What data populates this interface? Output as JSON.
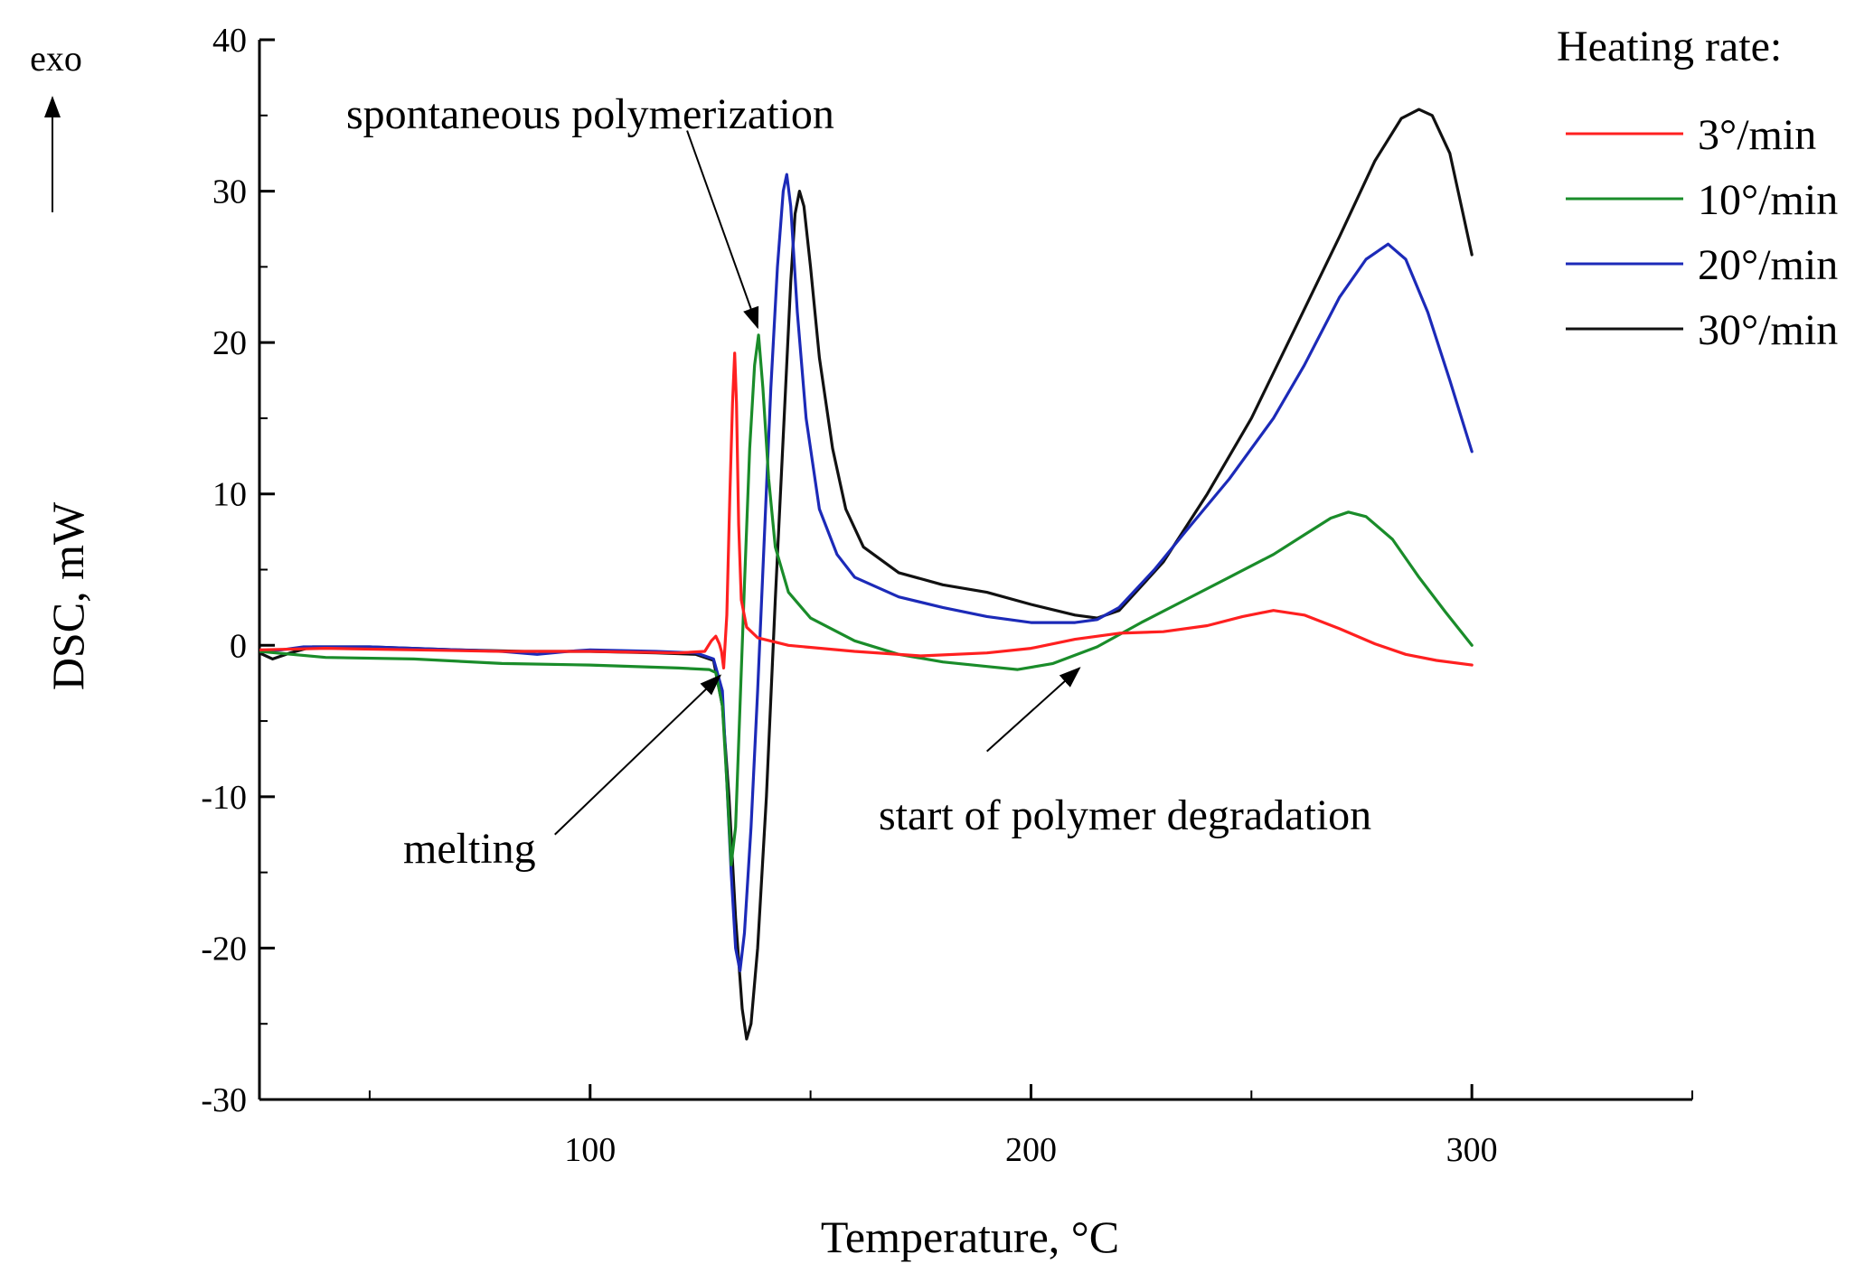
{
  "chart_data": {
    "type": "line",
    "title": "",
    "xlabel": "Temperature, °C",
    "ylabel": "DSC, mW",
    "xlim": [
      25,
      350
    ],
    "ylim": [
      -30,
      40
    ],
    "x_major_ticks": [
      100,
      200,
      300
    ],
    "x_minor_ticks": [
      50,
      150,
      250,
      350
    ],
    "y_major_ticks": [
      -30,
      -20,
      -10,
      0,
      10,
      20,
      30,
      40
    ],
    "y_tick_labels": [
      "-30",
      "-20",
      "-10",
      "0",
      "10",
      "20",
      "30",
      "40"
    ],
    "x_tick_labels": [
      "100",
      "200",
      "300"
    ],
    "grid": false,
    "exo_label": "exo",
    "legend": {
      "title": "Heating rate:",
      "placement": "top-right"
    },
    "series": [
      {
        "name": "3°/min",
        "color": "#ff2020",
        "points": [
          [
            25,
            -0.3
          ],
          [
            40,
            -0.2
          ],
          [
            60,
            -0.3
          ],
          [
            80,
            -0.4
          ],
          [
            100,
            -0.4
          ],
          [
            120,
            -0.5
          ],
          [
            126,
            -0.4
          ],
          [
            127.5,
            0.3
          ],
          [
            128.5,
            0.6
          ],
          [
            129.3,
            0.1
          ],
          [
            129.8,
            -0.4
          ],
          [
            130.3,
            -1.5
          ],
          [
            131,
            2
          ],
          [
            131.7,
            10
          ],
          [
            132.3,
            16
          ],
          [
            132.8,
            19.3
          ],
          [
            133.2,
            16
          ],
          [
            133.7,
            8
          ],
          [
            134.3,
            3
          ],
          [
            135.5,
            1.2
          ],
          [
            138,
            0.5
          ],
          [
            145,
            0
          ],
          [
            160,
            -0.4
          ],
          [
            175,
            -0.7
          ],
          [
            190,
            -0.5
          ],
          [
            200,
            -0.2
          ],
          [
            210,
            0.4
          ],
          [
            220,
            0.8
          ],
          [
            230,
            0.9
          ],
          [
            240,
            1.3
          ],
          [
            248,
            1.9
          ],
          [
            255,
            2.3
          ],
          [
            262,
            2
          ],
          [
            270,
            1.1
          ],
          [
            278,
            0.1
          ],
          [
            285,
            -0.6
          ],
          [
            292,
            -1
          ],
          [
            300,
            -1.3
          ]
        ]
      },
      {
        "name": "10°/min",
        "color": "#1a8c2a",
        "points": [
          [
            25,
            -0.4
          ],
          [
            40,
            -0.8
          ],
          [
            60,
            -0.9
          ],
          [
            80,
            -1.2
          ],
          [
            100,
            -1.3
          ],
          [
            120,
            -1.5
          ],
          [
            127,
            -1.6
          ],
          [
            128.5,
            -1.8
          ],
          [
            130,
            -4
          ],
          [
            131,
            -9
          ],
          [
            132,
            -14.5
          ],
          [
            133,
            -12
          ],
          [
            134,
            -4
          ],
          [
            135,
            4
          ],
          [
            136.2,
            13
          ],
          [
            137.3,
            18.5
          ],
          [
            138.2,
            20.5
          ],
          [
            139.2,
            17
          ],
          [
            140.5,
            11
          ],
          [
            142,
            6.5
          ],
          [
            145,
            3.5
          ],
          [
            150,
            1.8
          ],
          [
            160,
            0.3
          ],
          [
            170,
            -0.6
          ],
          [
            180,
            -1.1
          ],
          [
            190,
            -1.4
          ],
          [
            197,
            -1.6
          ],
          [
            205,
            -1.2
          ],
          [
            215,
            -0.1
          ],
          [
            225,
            1.5
          ],
          [
            235,
            3
          ],
          [
            245,
            4.5
          ],
          [
            255,
            6
          ],
          [
            262,
            7.3
          ],
          [
            268,
            8.4
          ],
          [
            272,
            8.8
          ],
          [
            276,
            8.5
          ],
          [
            282,
            7
          ],
          [
            288,
            4.5
          ],
          [
            294,
            2.2
          ],
          [
            300,
            0
          ]
        ]
      },
      {
        "name": "20°/min",
        "color": "#1c2ab8",
        "points": [
          [
            25,
            -0.4
          ],
          [
            30,
            -0.3
          ],
          [
            35,
            -0.1
          ],
          [
            50,
            -0.1
          ],
          [
            70,
            -0.3
          ],
          [
            80,
            -0.4
          ],
          [
            88,
            -0.6
          ],
          [
            95,
            -0.4
          ],
          [
            100,
            -0.3
          ],
          [
            115,
            -0.4
          ],
          [
            124,
            -0.5
          ],
          [
            128,
            -0.9
          ],
          [
            130,
            -3
          ],
          [
            131,
            -9
          ],
          [
            132,
            -15
          ],
          [
            133,
            -20
          ],
          [
            134,
            -21.5
          ],
          [
            135,
            -19
          ],
          [
            136.5,
            -12
          ],
          [
            138,
            -3
          ],
          [
            139.5,
            7
          ],
          [
            141,
            17
          ],
          [
            142.5,
            25
          ],
          [
            143.8,
            30
          ],
          [
            144.6,
            31.1
          ],
          [
            145.5,
            29
          ],
          [
            147,
            22
          ],
          [
            149,
            15
          ],
          [
            152,
            9
          ],
          [
            156,
            6
          ],
          [
            160,
            4.5
          ],
          [
            170,
            3.2
          ],
          [
            180,
            2.5
          ],
          [
            190,
            1.9
          ],
          [
            200,
            1.5
          ],
          [
            210,
            1.5
          ],
          [
            215,
            1.7
          ],
          [
            220,
            2.5
          ],
          [
            228,
            5
          ],
          [
            235,
            7.5
          ],
          [
            245,
            11
          ],
          [
            255,
            15
          ],
          [
            262,
            18.5
          ],
          [
            270,
            23
          ],
          [
            276,
            25.5
          ],
          [
            281,
            26.5
          ],
          [
            285,
            25.5
          ],
          [
            290,
            22
          ],
          [
            295,
            17.5
          ],
          [
            300,
            12.8
          ]
        ]
      },
      {
        "name": "30°/min",
        "color": "#111111",
        "points": [
          [
            25,
            -0.5
          ],
          [
            28,
            -0.9
          ],
          [
            32,
            -0.5
          ],
          [
            37,
            -0.1
          ],
          [
            50,
            -0.1
          ],
          [
            70,
            -0.3
          ],
          [
            85,
            -0.4
          ],
          [
            100,
            -0.4
          ],
          [
            115,
            -0.5
          ],
          [
            124,
            -0.6
          ],
          [
            128,
            -1
          ],
          [
            130,
            -4
          ],
          [
            131.5,
            -10
          ],
          [
            133,
            -18
          ],
          [
            134.5,
            -24
          ],
          [
            135.5,
            -26
          ],
          [
            136.5,
            -25
          ],
          [
            138,
            -20
          ],
          [
            140,
            -10
          ],
          [
            142,
            3
          ],
          [
            144,
            15
          ],
          [
            145.5,
            24
          ],
          [
            146.5,
            28.5
          ],
          [
            147.5,
            30
          ],
          [
            148.5,
            29
          ],
          [
            150,
            25
          ],
          [
            152,
            19
          ],
          [
            155,
            13
          ],
          [
            158,
            9
          ],
          [
            162,
            6.5
          ],
          [
            170,
            4.8
          ],
          [
            180,
            4
          ],
          [
            190,
            3.5
          ],
          [
            200,
            2.7
          ],
          [
            210,
            2
          ],
          [
            215,
            1.8
          ],
          [
            220,
            2.3
          ],
          [
            230,
            5.5
          ],
          [
            240,
            10
          ],
          [
            250,
            15
          ],
          [
            260,
            21
          ],
          [
            270,
            27
          ],
          [
            278,
            32
          ],
          [
            284,
            34.8
          ],
          [
            288,
            35.4
          ],
          [
            291,
            35
          ],
          [
            295,
            32.5
          ],
          [
            298,
            28.5
          ],
          [
            300,
            25.8
          ]
        ]
      }
    ],
    "annotations": [
      {
        "name": "spontaneous-polymerization",
        "text": "spontaneous polymerization",
        "target": [
          138,
          21
        ],
        "tail": [
          122,
          34
        ]
      },
      {
        "name": "melting",
        "text": "melting",
        "target": [
          129.5,
          -2
        ],
        "tail": [
          92,
          -12.5
        ]
      },
      {
        "name": "start-of-polymer-degradation",
        "text": "start of polymer degradation",
        "target": [
          211,
          -1.5
        ],
        "tail": [
          190,
          -7
        ]
      }
    ]
  }
}
